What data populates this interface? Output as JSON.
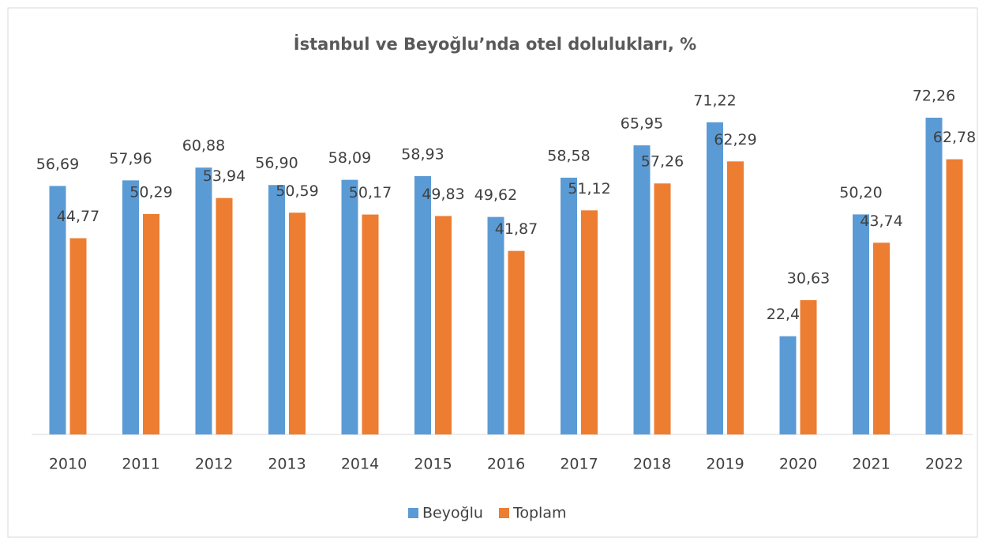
{
  "chart_data": {
    "type": "bar",
    "title": "İstanbul ve Beyoğlu’nda otel dolulukları, %",
    "categories": [
      "2010",
      "2011",
      "2012",
      "2013",
      "2014",
      "2015",
      "2016",
      "2017",
      "2018",
      "2019",
      "2020",
      "2021",
      "2022"
    ],
    "series": [
      {
        "name": "Beyoğlu",
        "color": "#5b9bd5",
        "values": [
          56.69,
          57.96,
          60.88,
          56.9,
          58.09,
          58.93,
          49.62,
          58.58,
          65.95,
          71.22,
          22.41,
          50.2,
          72.26
        ],
        "value_labels": [
          "56,69",
          "57,96",
          "60,88",
          "56,90",
          "58,09",
          "58,93",
          "49,62",
          "58,58",
          "65,95",
          "71,22",
          "22,41",
          "50,20",
          "72,26"
        ]
      },
      {
        "name": "Toplam",
        "color": "#ed7d31",
        "values": [
          44.77,
          50.29,
          53.94,
          50.59,
          50.17,
          49.83,
          41.87,
          51.12,
          57.26,
          62.29,
          30.63,
          43.74,
          62.78
        ],
        "value_labels": [
          "44,77",
          "50,29",
          "53,94",
          "50,59",
          "50,17",
          "49,83",
          "41,87",
          "51,12",
          "57,26",
          "62,29",
          "30,63",
          "43,74",
          "62,78"
        ]
      }
    ],
    "legend": "bottom"
  }
}
